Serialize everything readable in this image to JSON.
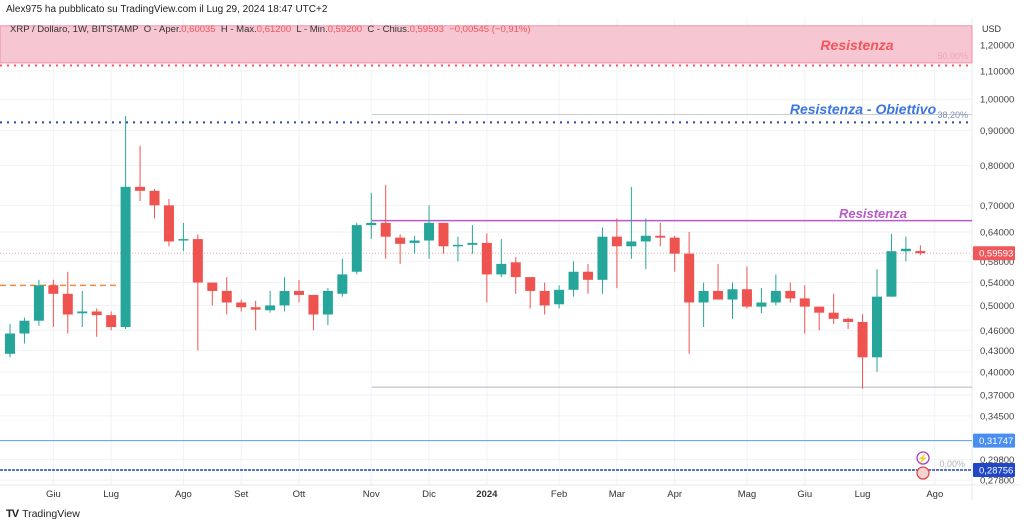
{
  "header": {
    "published": "Alex975 ha pubblicato su TradingView.com il Lug 29, 2024 18:47 UTC+2",
    "symbol": "XRP / Dollaro, 1W, BITSTAMP",
    "open_label": "O - Aper.",
    "open": "0,60035",
    "high_label": "H - Max.",
    "high": "0,61200",
    "low_label": "L - Min.",
    "low": "0,59200",
    "close_label": "C - Chius.",
    "close": "0,59593",
    "change": "−0,00545 (−0,91%)"
  },
  "footer": {
    "brand": "TradingView"
  },
  "chart_data": {
    "type": "candlestick",
    "currency": "USD",
    "scale": "log",
    "ylim": [
      0.272,
      1.3
    ],
    "grid": true,
    "y_ticks": [
      "1,20000",
      "1,10000",
      "1,00000",
      "0,90000",
      "0,80000",
      "0,70000",
      "0,64000",
      "0,58000",
      "0,54000",
      "0,50000",
      "0,46000",
      "0,43000",
      "0,40000",
      "0,37000",
      "0,34500",
      "0,29800",
      "0,27800"
    ],
    "y_tick_values": [
      1.2,
      1.1,
      1.0,
      0.9,
      0.8,
      0.7,
      0.64,
      0.58,
      0.54,
      0.5,
      0.46,
      0.43,
      0.4,
      0.37,
      0.345,
      0.298,
      0.278
    ],
    "x_ticks": [
      "Giu",
      "Lug",
      "Ago",
      "Set",
      "Ott",
      "Nov",
      "Dic",
      "2024",
      "Feb",
      "Mar",
      "Apr",
      "Mag",
      "Giu",
      "Lug",
      "Ago"
    ],
    "x_tick_candle_index": [
      3,
      7,
      12,
      16,
      20,
      25,
      29,
      33,
      38,
      42,
      46,
      51,
      55,
      59,
      64
    ],
    "colors": {
      "up": "#26a69a",
      "down": "#ef5350"
    },
    "candles_ohlc": [
      [
        0.425,
        0.47,
        0.42,
        0.455
      ],
      [
        0.455,
        0.48,
        0.44,
        0.475
      ],
      [
        0.475,
        0.545,
        0.467,
        0.535
      ],
      [
        0.535,
        0.545,
        0.465,
        0.52
      ],
      [
        0.52,
        0.56,
        0.455,
        0.485
      ],
      [
        0.487,
        0.525,
        0.465,
        0.49
      ],
      [
        0.49,
        0.495,
        0.45,
        0.484
      ],
      [
        0.484,
        0.49,
        0.46,
        0.465
      ],
      [
        0.465,
        0.945,
        0.462,
        0.745
      ],
      [
        0.745,
        0.855,
        0.71,
        0.735
      ],
      [
        0.735,
        0.74,
        0.67,
        0.7
      ],
      [
        0.7,
        0.715,
        0.61,
        0.62
      ],
      [
        0.622,
        0.66,
        0.6,
        0.625
      ],
      [
        0.625,
        0.635,
        0.43,
        0.54
      ],
      [
        0.54,
        0.54,
        0.5,
        0.525
      ],
      [
        0.525,
        0.55,
        0.485,
        0.505
      ],
      [
        0.505,
        0.51,
        0.49,
        0.497
      ],
      [
        0.497,
        0.508,
        0.46,
        0.493
      ],
      [
        0.492,
        0.525,
        0.488,
        0.5
      ],
      [
        0.5,
        0.55,
        0.49,
        0.525
      ],
      [
        0.525,
        0.545,
        0.505,
        0.518
      ],
      [
        0.518,
        0.518,
        0.46,
        0.485
      ],
      [
        0.485,
        0.53,
        0.468,
        0.525
      ],
      [
        0.52,
        0.585,
        0.515,
        0.555
      ],
      [
        0.56,
        0.66,
        0.555,
        0.655
      ],
      [
        0.655,
        0.73,
        0.625,
        0.66
      ],
      [
        0.66,
        0.75,
        0.585,
        0.63
      ],
      [
        0.628,
        0.635,
        0.575,
        0.615
      ],
      [
        0.617,
        0.632,
        0.595,
        0.622
      ],
      [
        0.622,
        0.7,
        0.585,
        0.66
      ],
      [
        0.66,
        0.66,
        0.595,
        0.61
      ],
      [
        0.61,
        0.63,
        0.58,
        0.613
      ],
      [
        0.613,
        0.655,
        0.595,
        0.617
      ],
      [
        0.617,
        0.637,
        0.505,
        0.555
      ],
      [
        0.555,
        0.625,
        0.55,
        0.575
      ],
      [
        0.578,
        0.588,
        0.52,
        0.55
      ],
      [
        0.55,
        0.55,
        0.495,
        0.525
      ],
      [
        0.525,
        0.54,
        0.485,
        0.5
      ],
      [
        0.502,
        0.535,
        0.495,
        0.527
      ],
      [
        0.527,
        0.58,
        0.515,
        0.56
      ],
      [
        0.56,
        0.575,
        0.52,
        0.545
      ],
      [
        0.545,
        0.65,
        0.52,
        0.63
      ],
      [
        0.63,
        0.67,
        0.53,
        0.61
      ],
      [
        0.61,
        0.745,
        0.585,
        0.62
      ],
      [
        0.62,
        0.67,
        0.565,
        0.632
      ],
      [
        0.632,
        0.66,
        0.61,
        0.628
      ],
      [
        0.628,
        0.632,
        0.56,
        0.595
      ],
      [
        0.595,
        0.64,
        0.425,
        0.505
      ],
      [
        0.505,
        0.54,
        0.465,
        0.525
      ],
      [
        0.525,
        0.575,
        0.51,
        0.51
      ],
      [
        0.51,
        0.54,
        0.478,
        0.528
      ],
      [
        0.528,
        0.57,
        0.495,
        0.498
      ],
      [
        0.498,
        0.53,
        0.487,
        0.505
      ],
      [
        0.505,
        0.555,
        0.5,
        0.525
      ],
      [
        0.525,
        0.54,
        0.505,
        0.512
      ],
      [
        0.512,
        0.535,
        0.455,
        0.498
      ],
      [
        0.498,
        0.498,
        0.46,
        0.488
      ],
      [
        0.488,
        0.52,
        0.47,
        0.478
      ],
      [
        0.478,
        0.48,
        0.462,
        0.473
      ],
      [
        0.473,
        0.485,
        0.378,
        0.42
      ],
      [
        0.42,
        0.565,
        0.4,
        0.515
      ],
      [
        0.515,
        0.636,
        0.515,
        0.6
      ],
      [
        0.6,
        0.63,
        0.58,
        0.605
      ],
      [
        0.60035,
        0.612,
        0.592,
        0.59593
      ]
    ],
    "last_price": {
      "value": 0.59593,
      "label": "0,59593",
      "color": "#f0565a"
    },
    "annotations": {
      "resistance_zone": {
        "label": "Resistenza",
        "from": 1.13,
        "to": 1.28,
        "color": "#f7c6d3",
        "text_color": "#f0565a",
        "fib_label": "50,00%"
      },
      "red_dotted": {
        "value": 1.12,
        "color": "#f0565a"
      },
      "blue_dotted": {
        "value": 0.925,
        "color": "#2f44a8"
      },
      "fib_382": {
        "value": 0.95,
        "label": "38,20%",
        "text": "Resistenza - Obiettivo",
        "color": "#3a75e0"
      },
      "purple_resistance": {
        "value": 0.665,
        "label": "Resistenza",
        "color": "#b85ac8"
      },
      "gray_support": {
        "value": 0.38,
        "color": "#b0b3ba"
      },
      "orange_dashed": {
        "value": 0.535,
        "color": "#f08a3c"
      },
      "light_blue_line": {
        "value": 0.31747,
        "label": "0,31747",
        "color": "#5b9cf5"
      },
      "dark_blue_line": {
        "value": 0.28756,
        "label": "0,28756",
        "color": "#1f47c8",
        "fib_label": "0,00%"
      }
    }
  }
}
